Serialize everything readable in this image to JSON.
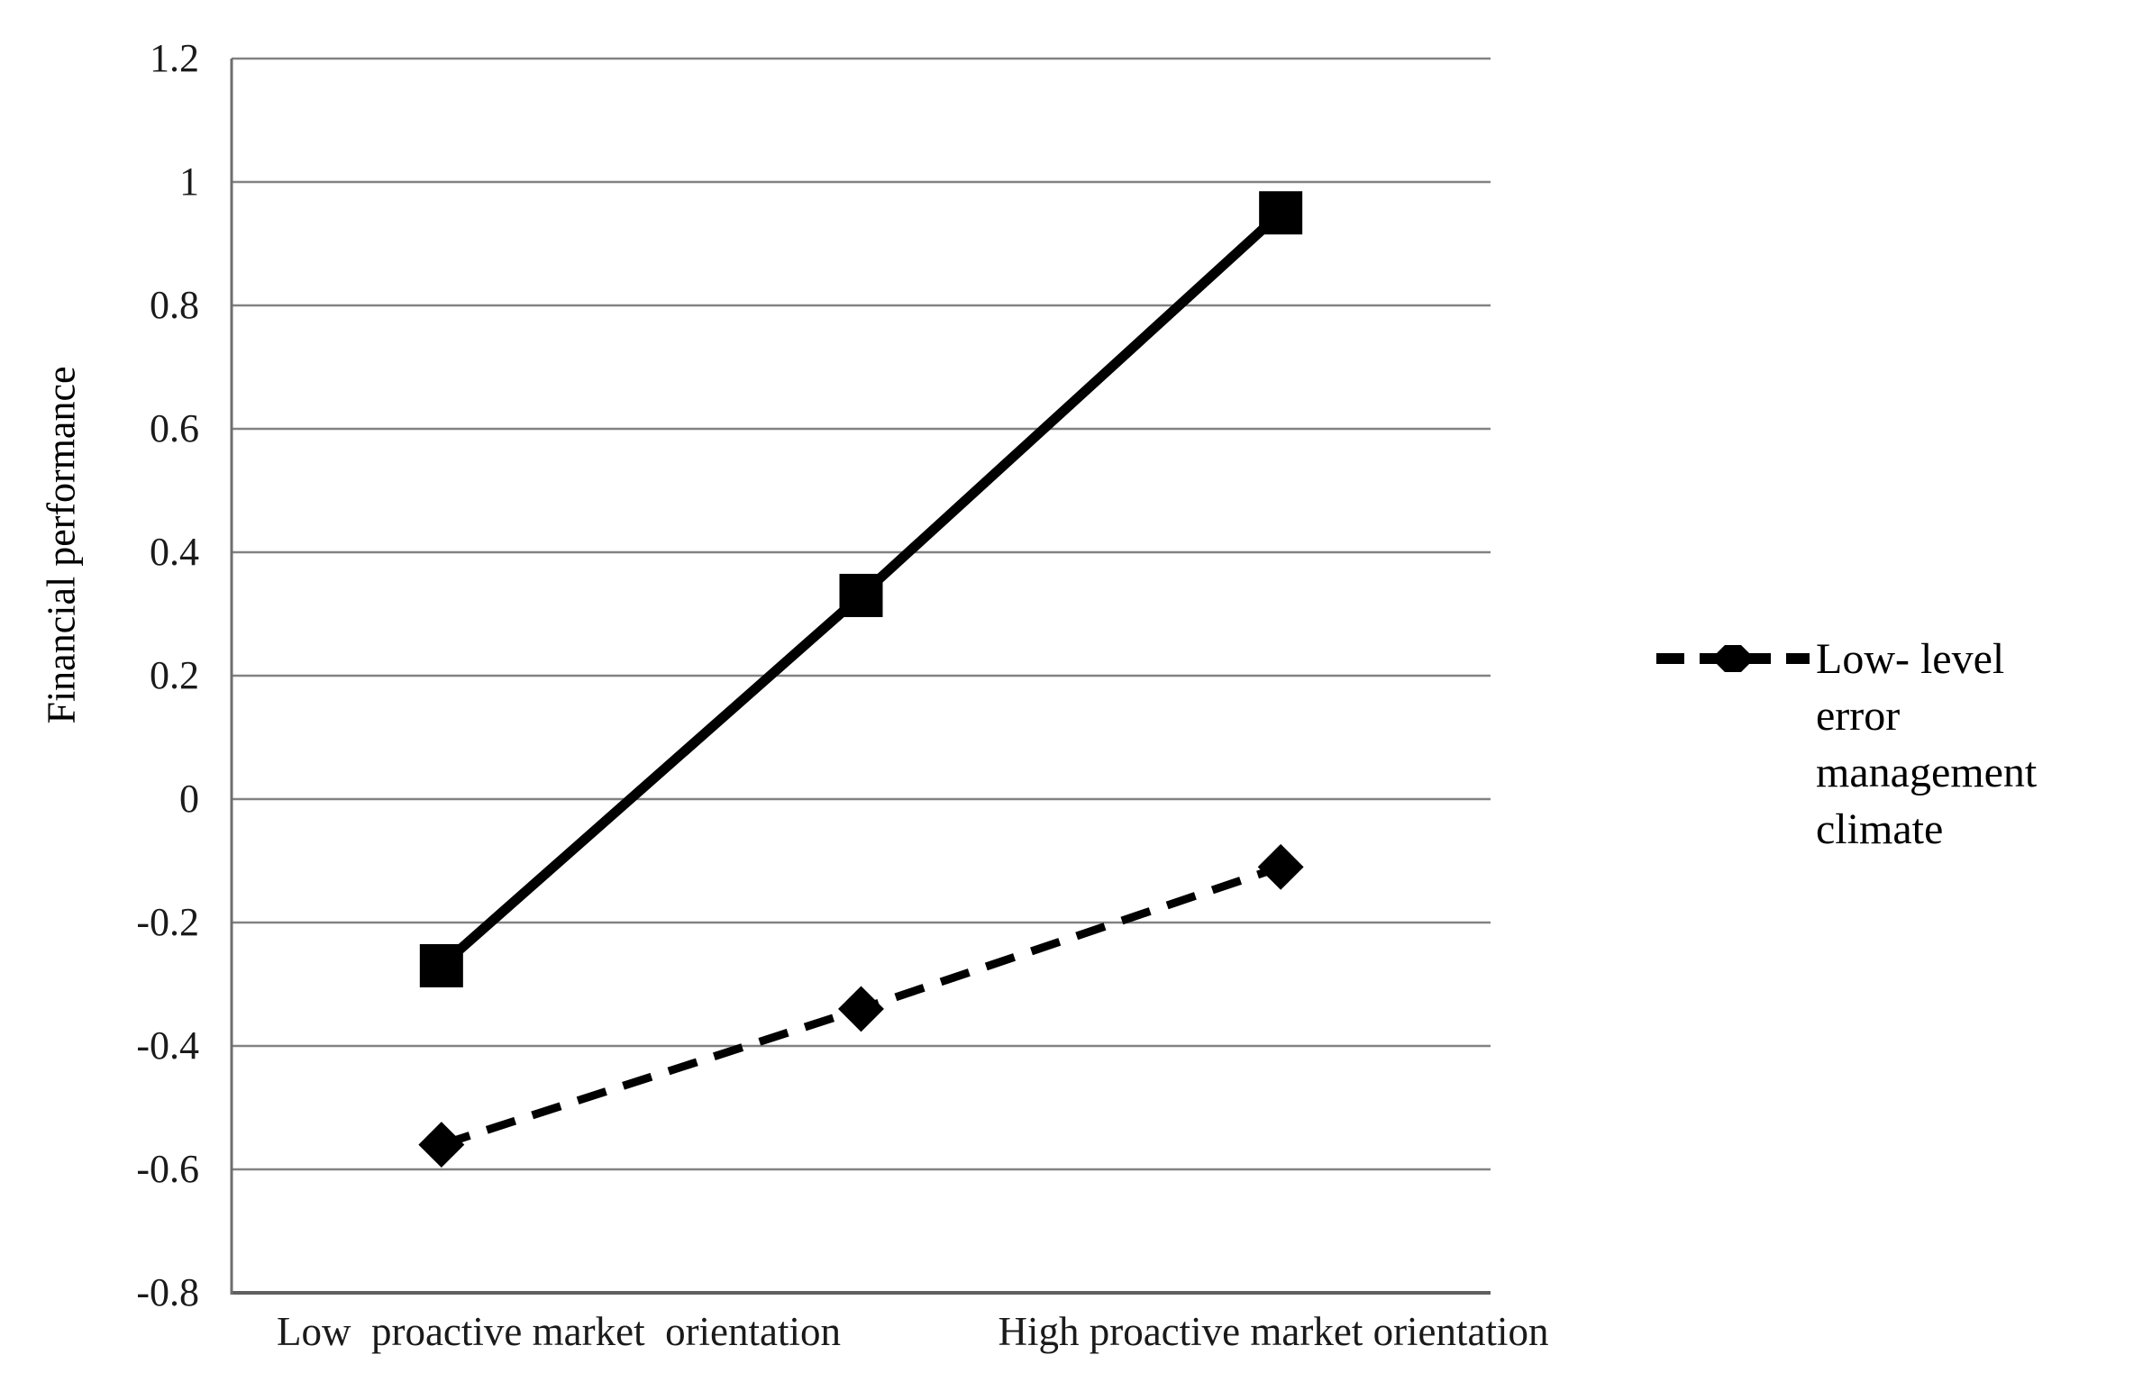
{
  "figure": {
    "background_color": "#ffffff",
    "text_color": "#000000",
    "gridline_color": "#828282",
    "axis_line_color": "#5f5f5f",
    "series_color": "#000000"
  },
  "y_axis": {
    "title": "Financial performance",
    "tick_labels": [
      "1.2",
      "1",
      "0.8",
      "0.6",
      "0.4",
      "0.2",
      "0",
      "-0.2",
      "-0.4",
      "-0.6",
      "-0.8"
    ],
    "min": -0.8,
    "max": 1.2,
    "step": 0.2
  },
  "x_axis": {
    "labels": [
      "Low  proactive market  orientation",
      "High proactive market orientation"
    ]
  },
  "legend": {
    "label": "Low- level error\nmanagement\nclimate",
    "marker": "diamond-on-dashed-line",
    "position": "right"
  },
  "chart_data": {
    "type": "line",
    "x": [
      1,
      2,
      3
    ],
    "categories": [
      "Low proactive market orientation",
      "",
      "High proactive market orientation"
    ],
    "series": [
      {
        "legend_label": null,
        "marker": "square",
        "line_style": "solid",
        "color": "#000000",
        "values": [
          -0.27,
          0.33,
          0.95
        ]
      },
      {
        "legend_label": "Low- level error management climate",
        "marker": "diamond",
        "line_style": "dashed",
        "color": "#000000",
        "values": [
          -0.56,
          -0.34,
          -0.11
        ]
      }
    ],
    "title": "",
    "xlabel": "",
    "ylabel": "Financial performance",
    "ylim": [
      -0.8,
      1.2
    ],
    "grid": "horizontal-only",
    "legend_entries_visible": [
      "Low- level error management climate"
    ]
  }
}
